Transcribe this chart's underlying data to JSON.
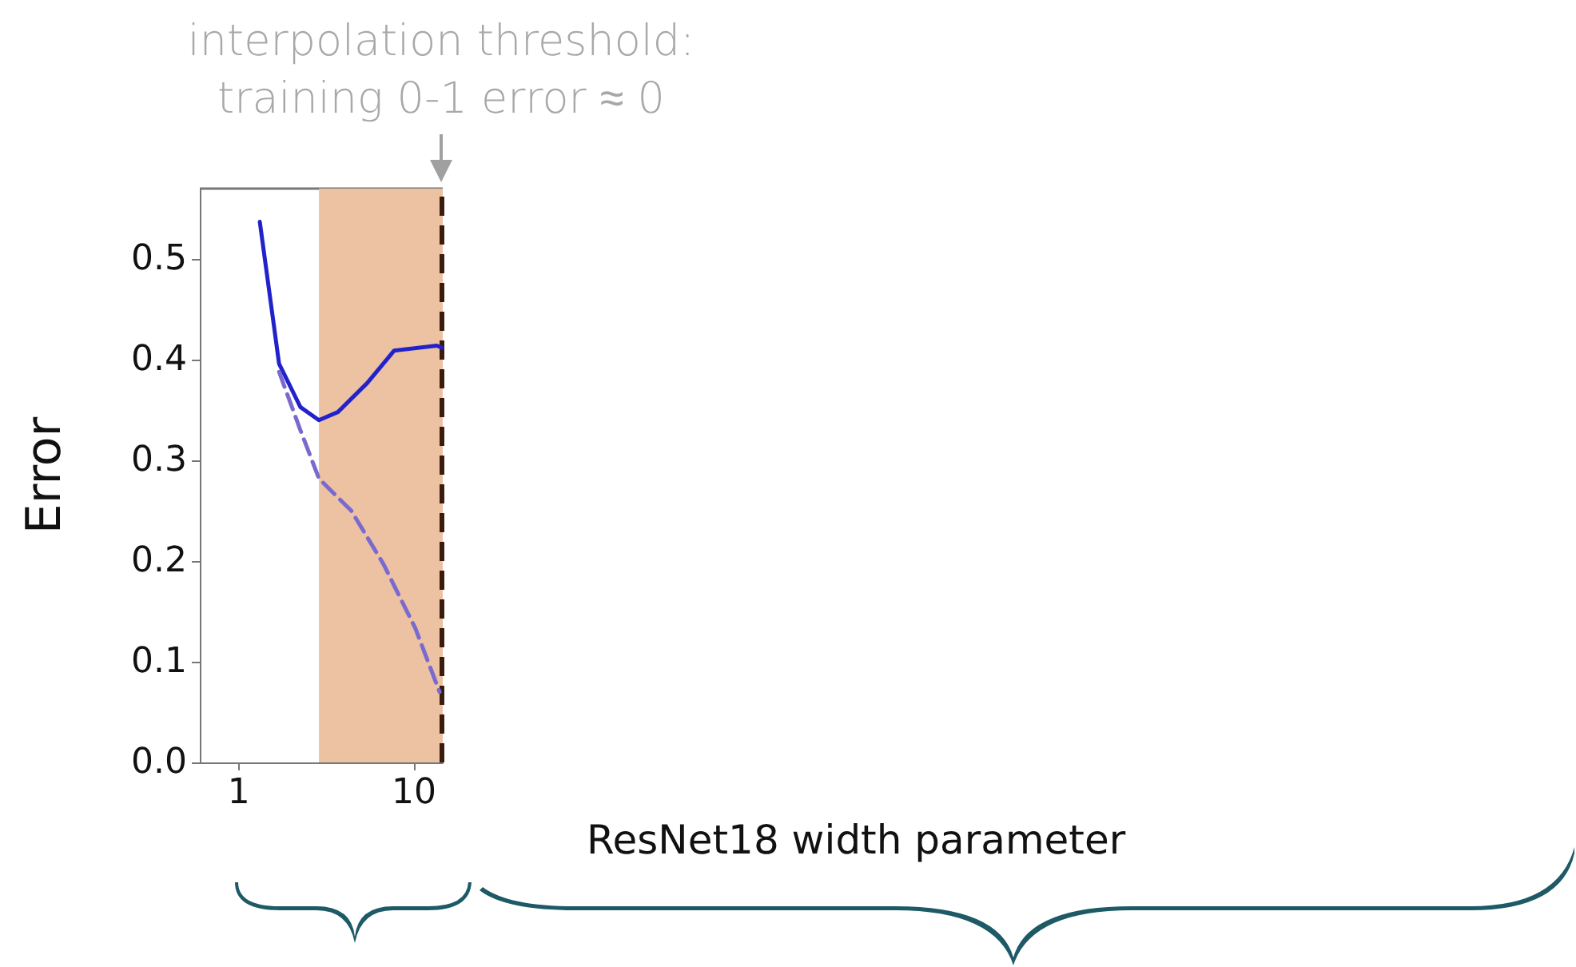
{
  "chart_data": {
    "type": "line",
    "xlabel": "ResNet18 width parameter",
    "ylabel": "Error",
    "log": "x",
    "xlim": [
      0.6,
      14.6
    ],
    "xticks": [
      1,
      10
    ],
    "ylim": [
      0,
      0.57
    ],
    "yticks": [
      {
        "value": 0,
        "label": "0.0"
      },
      {
        "value": 0.1,
        "label": "0.1"
      },
      {
        "value": 0.2,
        "label": "0.2"
      },
      {
        "value": 0.3,
        "label": "0.3"
      },
      {
        "value": 0.4,
        "label": "0.4"
      },
      {
        "value": 0.5,
        "label": "0.5"
      }
    ],
    "grid": false,
    "marker": "none",
    "series": [
      {
        "color": "#2222cc",
        "line_style": "solid",
        "x": [
          1.32,
          1.7,
          2.25,
          2.87,
          3.68,
          5.42,
          7.7,
          13.5,
          14.4
        ],
        "values": [
          0.537,
          0.396,
          0.353,
          0.34,
          0.348,
          0.377,
          0.409,
          0.414,
          0.412
        ]
      },
      {
        "color": "#7a6ad0",
        "line_style": "dashed",
        "x": [
          1.7,
          2.25,
          2.87,
          4.39,
          6.7,
          10.2,
          14.0
        ],
        "values": [
          0.388,
          0.33,
          0.282,
          0.25,
          0.197,
          0.133,
          0.07
        ]
      }
    ],
    "bands": [
      {
        "axis": "x",
        "from": 2.87,
        "to": 14.6,
        "color": "#ecc2a2"
      }
    ],
    "ref_lines": [
      {
        "axis": "x",
        "value": 14.3,
        "color": "#3a1c0c",
        "line_style": "dashed",
        "label": "interpolation threshold:\ntraining 0-1 error ≈ 0"
      }
    ]
  }
}
